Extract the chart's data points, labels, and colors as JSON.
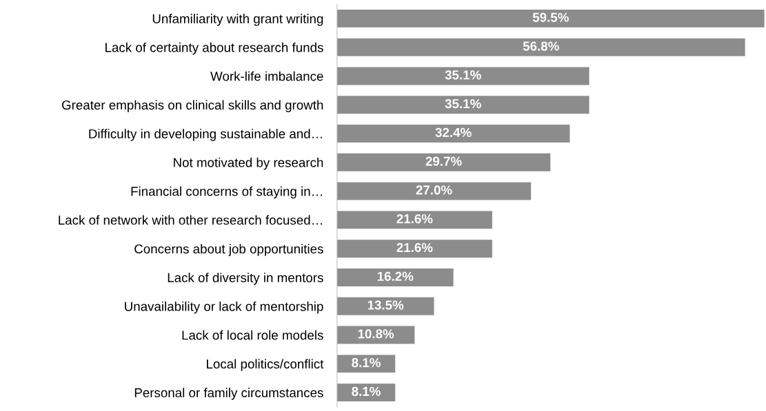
{
  "chart_data": {
    "type": "bar",
    "orientation": "horizontal",
    "categories": [
      "Unfamiliarity with grant writing",
      "Lack of certainty about research funds",
      "Work-life imbalance",
      "Greater emphasis on clinical skills and growth",
      "Difficulty in developing sustainable and…",
      "Not motivated by research",
      "Financial concerns of staying in…",
      "Lack of network with other research focused…",
      "Concerns about job opportunities",
      "Lack of diversity in mentors",
      "Unavailability or lack of mentorship",
      "Lack of local role models",
      "Local politics/conflict",
      "Personal or family circumstances"
    ],
    "values": [
      59.5,
      56.8,
      35.1,
      35.1,
      32.4,
      29.7,
      27.0,
      21.6,
      21.6,
      16.2,
      13.5,
      10.8,
      8.1,
      8.1
    ],
    "value_labels": [
      "59.5%",
      "56.8%",
      "35.1%",
      "35.1%",
      "32.4%",
      "29.7%",
      "27.0%",
      "21.6%",
      "21.6%",
      "16.2%",
      "13.5%",
      "10.8%",
      "8.1%",
      "8.1%"
    ],
    "color": "#8c8c8c",
    "grid": false,
    "legend": false
  }
}
